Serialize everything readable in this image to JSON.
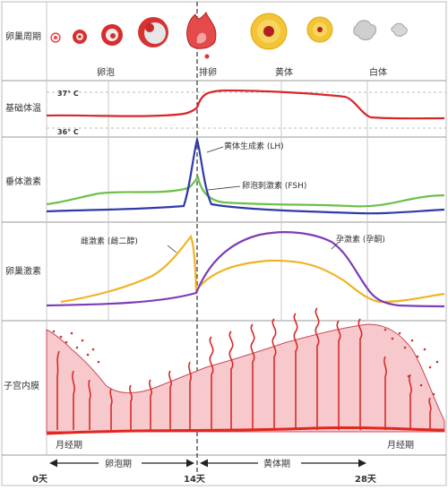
{
  "rows": {
    "ovarian_cycle": "卵巢周期",
    "bbt": "基础体温",
    "pituitary": "垂体激素",
    "ovarian_hormones": "卵巢激素",
    "endometrium": "子宫内膜"
  },
  "ovary_stages": {
    "follicle": "卵泡",
    "ovulation": "排卵",
    "corpus_luteum": "黄体",
    "corpus_albicans": "白体"
  },
  "temperature": {
    "high": "37° C",
    "low": "36° C"
  },
  "hormones": {
    "lh": "黄体生成素 (LH)",
    "fsh": "卵泡刺激素 (FSH)",
    "estrogen": "雌激素 (雌二醇)",
    "progesterone": "孕激素 (孕酮)"
  },
  "phases": {
    "menses_start": "月经期",
    "menses_end": "月经期",
    "follicular": "卵泡期",
    "luteal": "黄体期"
  },
  "days": {
    "day0": "0天",
    "day14": "14天",
    "day28": "28天"
  },
  "colors": {
    "bbt": "#d9262a",
    "lh": "#2f3aa8",
    "fsh": "#6cc04a",
    "estrogen": "#f0b323",
    "progesterone": "#7b3db5",
    "endometrium_fill": "#f8c9cc",
    "gland": "#d62a2a",
    "grid": "#999999"
  }
}
